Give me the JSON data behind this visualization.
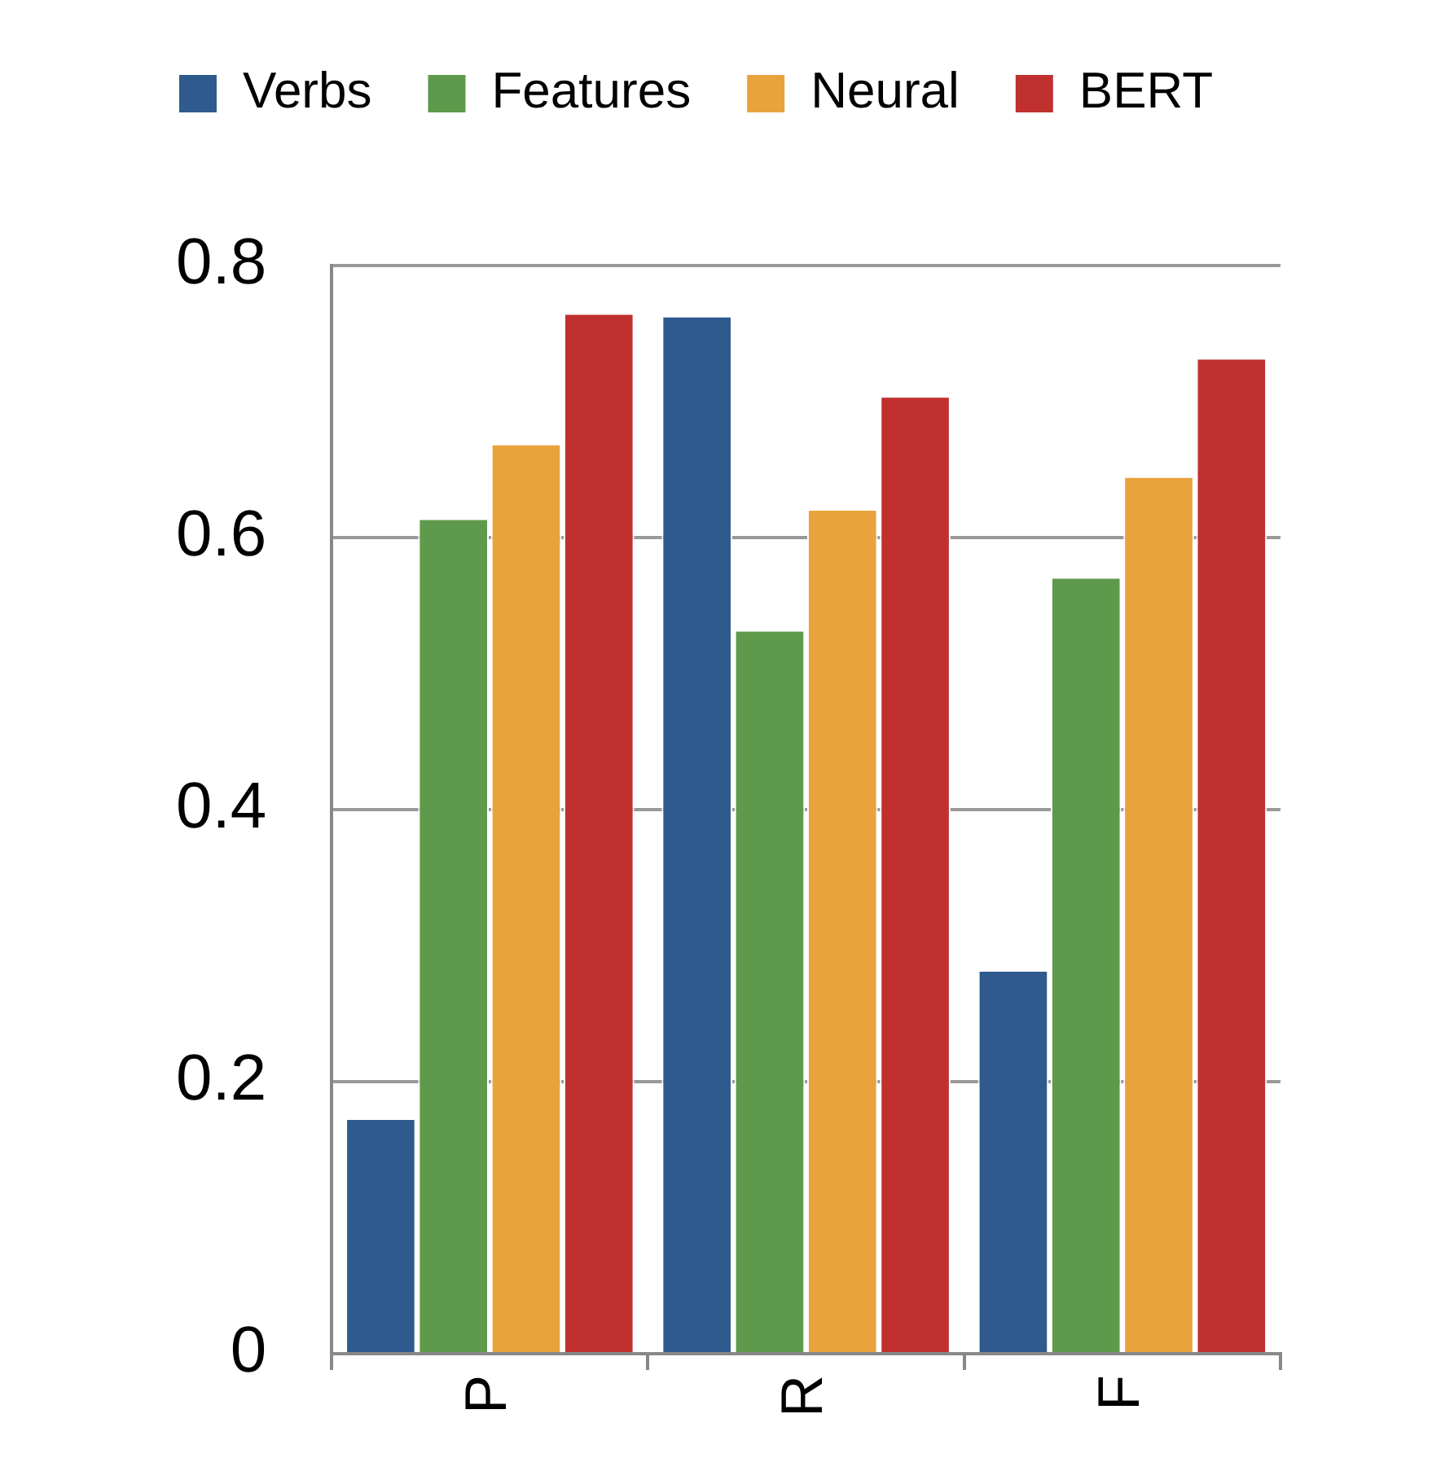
{
  "chart_data": {
    "type": "bar",
    "categories": [
      "P",
      "R",
      "F"
    ],
    "series": [
      {
        "name": "Verbs",
        "color": "#2e5a8e",
        "values": [
          0.173,
          0.763,
          0.282
        ]
      },
      {
        "name": "Features",
        "color": "#5e9a4b",
        "values": [
          0.614,
          0.532,
          0.571
        ]
      },
      {
        "name": "Neural",
        "color": "#e9a33d",
        "values": [
          0.669,
          0.621,
          0.645
        ]
      },
      {
        "name": "BERT",
        "color": "#c0302f",
        "values": [
          0.765,
          0.704,
          0.732
        ]
      }
    ],
    "ylim": [
      0,
      0.8
    ],
    "yticks": [
      0,
      0.2,
      0.4,
      0.6,
      0.8
    ],
    "grid": "y",
    "legend": "top"
  }
}
